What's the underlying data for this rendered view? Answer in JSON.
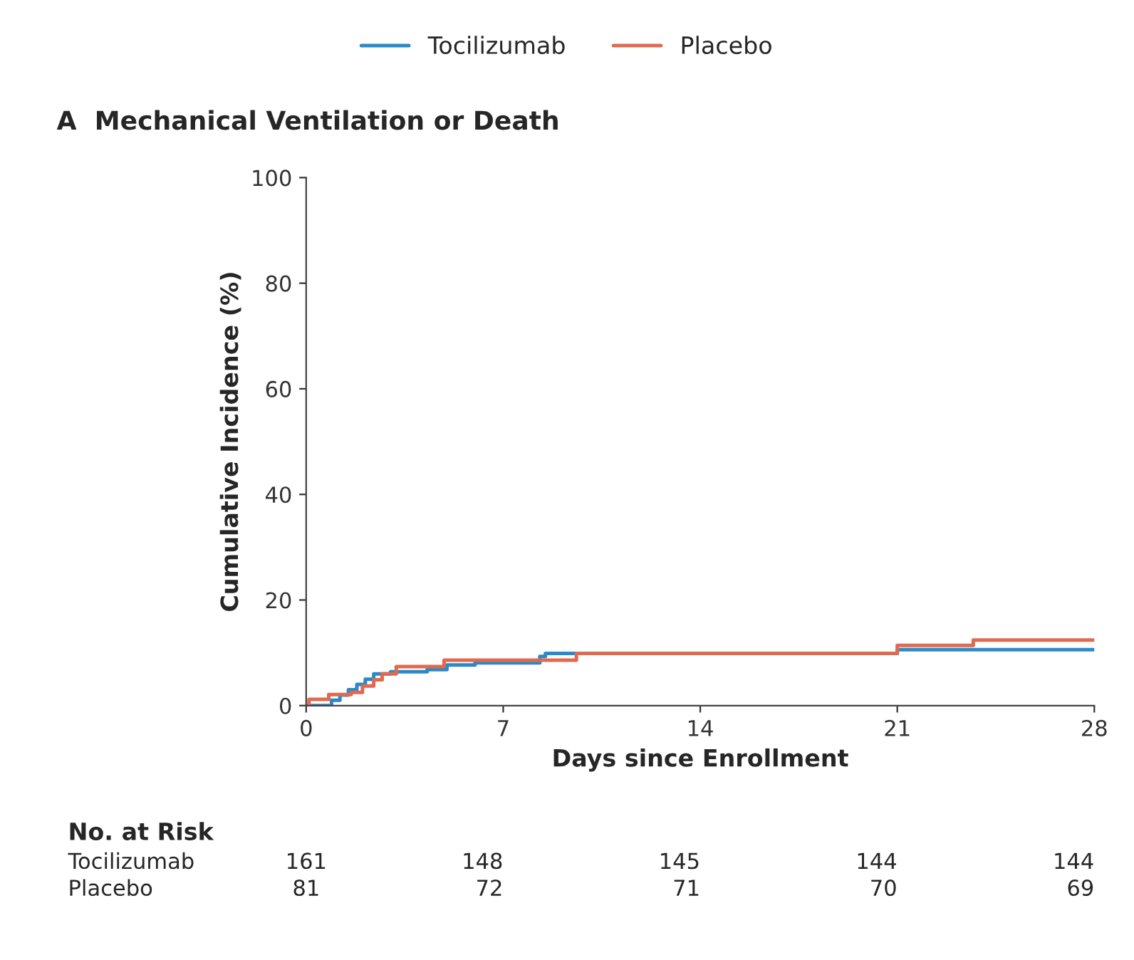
{
  "chart_data": {
    "type": "step",
    "title": "A  Mechanical Ventilation or Death",
    "xlabel": "Days since Enrollment",
    "ylabel": "Cumulative Incidence (%)",
    "xlim": [
      0,
      28
    ],
    "xticks": [
      0,
      7,
      14,
      21,
      28
    ],
    "ylim": [
      0,
      100
    ],
    "yticks": [
      0,
      20,
      40,
      60,
      80,
      100
    ],
    "grid": false,
    "legend": "top",
    "marker": "none",
    "line_style": "solid",
    "series": [
      {
        "name": "Tocilizumab",
        "color": "#2a8ac8",
        "x": [
          0,
          0.9,
          1.2,
          1.5,
          1.8,
          2.1,
          2.4,
          3.0,
          4.3,
          5.0,
          6.0,
          8.3,
          8.5,
          21.0,
          28.0
        ],
        "values": [
          0,
          1.0,
          2.0,
          3.0,
          4.0,
          5.0,
          6.0,
          6.4,
          6.8,
          7.7,
          8.1,
          9.3,
          9.9,
          10.6,
          10.6
        ]
      },
      {
        "name": "Placebo",
        "color": "#e06a50",
        "x": [
          0,
          0.1,
          0.8,
          1.6,
          2.0,
          2.4,
          2.7,
          3.2,
          4.9,
          9.6,
          21.0,
          23.7,
          28.0
        ],
        "values": [
          0,
          1.2,
          2.1,
          2.5,
          3.7,
          4.9,
          6.0,
          7.4,
          8.6,
          9.9,
          11.4,
          12.4,
          12.4
        ]
      }
    ],
    "annotations": [
      "No. at Risk",
      "Tocilizumab",
      "161",
      "148",
      "145",
      "144",
      "144",
      "Placebo",
      "81",
      "72",
      "71",
      "70",
      "69"
    ]
  }
}
